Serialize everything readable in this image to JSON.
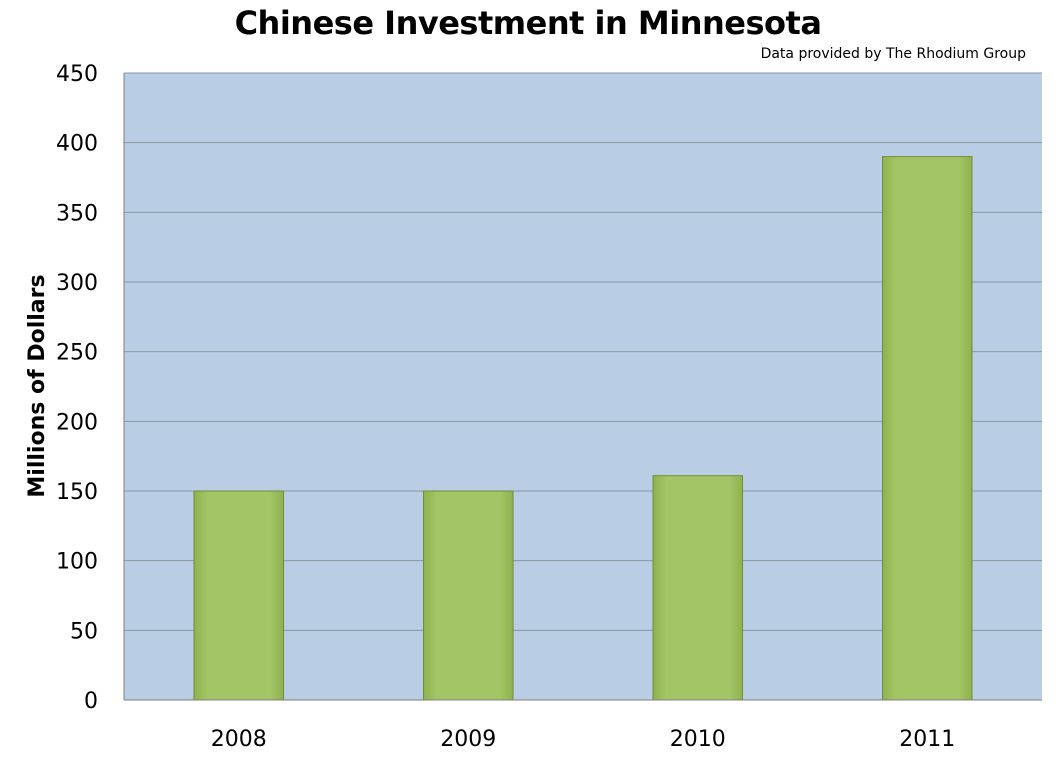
{
  "chart_data": {
    "type": "bar",
    "title": "Chinese Investment in Minnesota",
    "subtitle": "Data provided by The Rhodium Group",
    "xlabel": "",
    "ylabel": "Millions of Dollars",
    "categories": [
      "2008",
      "2009",
      "2010",
      "2011"
    ],
    "values": [
      150,
      150,
      161,
      390
    ],
    "ylim": [
      0,
      450
    ],
    "yticks": [
      0,
      50,
      100,
      150,
      200,
      250,
      300,
      350,
      400,
      450
    ],
    "grid": true,
    "legend": "none",
    "colors": {
      "plot_background": "#b9cde4",
      "gridline": "#8a96a3",
      "bar_fill": "#a4c565",
      "bar_edge": "#6f8f35",
      "axis_line": "#808080"
    }
  }
}
